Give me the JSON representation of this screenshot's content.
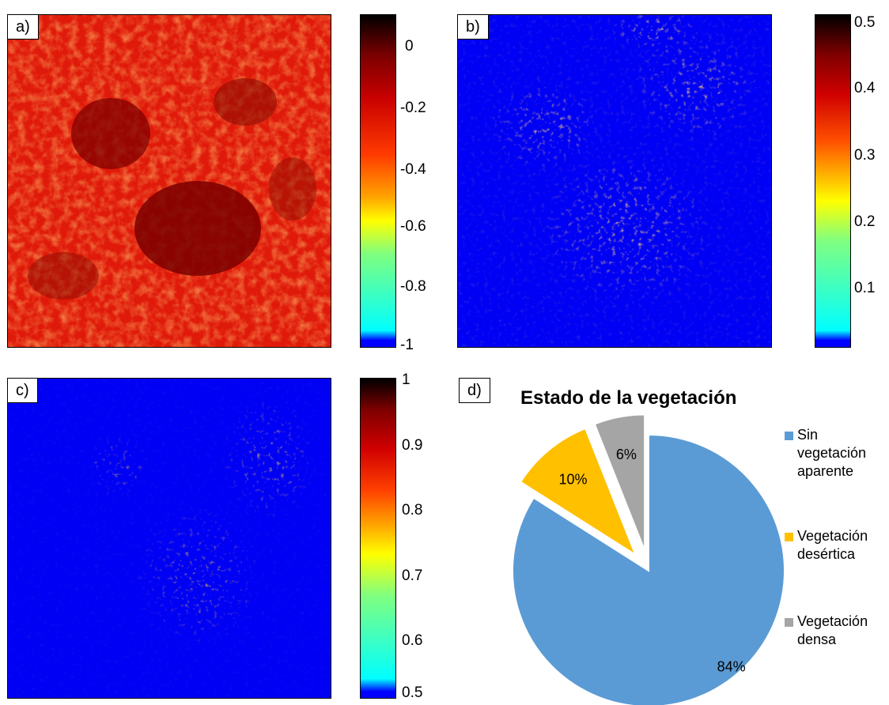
{
  "panels": {
    "a": {
      "label": "a)",
      "colorbar": {
        "ticks": [
          "0",
          "-0.2",
          "-0.4",
          "-0.6",
          "-0.8",
          "-1"
        ]
      }
    },
    "b": {
      "label": "b)",
      "colorbar": {
        "ticks": [
          "0.5",
          "0.4",
          "0.3",
          "0.2",
          "0.1"
        ]
      }
    },
    "c": {
      "label": "c)",
      "colorbar": {
        "ticks": [
          "1",
          "0.9",
          "0.8",
          "0.7",
          "0.6",
          "0.5"
        ]
      }
    },
    "d": {
      "label": "d)"
    }
  },
  "chart_data": [
    {
      "type": "heatmap",
      "panel": "a",
      "colorbar_range": [
        -1,
        0.05
      ],
      "colormap": "jet"
    },
    {
      "type": "heatmap",
      "panel": "b",
      "colorbar_range": [
        0,
        0.5
      ],
      "colormap": "jet"
    },
    {
      "type": "heatmap",
      "panel": "c",
      "colorbar_range": [
        0.48,
        1
      ],
      "colormap": "jet"
    },
    {
      "type": "pie",
      "panel": "d",
      "title": "Estado de la vegetación",
      "categories": [
        "Sin vegetación aparente",
        "Vegetación desértica",
        "Vegetación densa"
      ],
      "values": [
        84,
        10,
        6
      ],
      "labels": [
        "84%",
        "10%",
        "6%"
      ],
      "colors": [
        "#5B9BD5",
        "#FFC000",
        "#A5A5A5"
      ],
      "exploded": [
        false,
        true,
        true
      ],
      "legend": [
        "Sin vegetación aparente",
        "Vegetación desértica",
        "Vegetación densa"
      ],
      "legend_position": "right"
    }
  ]
}
